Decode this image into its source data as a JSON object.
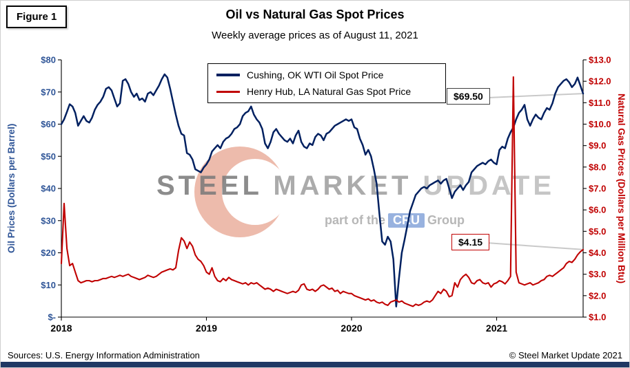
{
  "figure_label": "Figure 1",
  "title": "Oil vs Natural Gas Spot Prices",
  "subtitle": "Weekly average prices as of August 11, 2021",
  "watermark": {
    "word1": "STEEL",
    "word2": "MARKET",
    "word3": "UPDATE",
    "tagline_pre": "part of the",
    "tagline_brand": "CRU",
    "tagline_post": "Group"
  },
  "annotations": {
    "oil": {
      "text": "$69.50"
    },
    "gas": {
      "text": "$4.15"
    }
  },
  "footer": {
    "sources": "Sources: U.S. Energy Information Administration",
    "copyright": "© Steel Market Update 2021"
  },
  "colors": {
    "oil_line": "#002060",
    "gas_line": "#C00000",
    "left_axis": "#2F5597",
    "right_axis": "#C00000",
    "bottom_bar": "#1F3864",
    "callout_leader": "#C9C9C9"
  },
  "chart_data": {
    "type": "line",
    "grid": false,
    "legend_position": "top-center-inside",
    "x_unit": "week",
    "x_ticks": [
      {
        "index": 0,
        "label": "2018"
      },
      {
        "index": 52,
        "label": "2019"
      },
      {
        "index": 104,
        "label": "2020"
      },
      {
        "index": 156,
        "label": "2021"
      }
    ],
    "left_axis": {
      "title": "Oil Prices (Dollars per Barrel)",
      "min": 0,
      "max": 80,
      "ticks": [
        {
          "value": 80,
          "label": "$80"
        },
        {
          "value": 70,
          "label": "$70"
        },
        {
          "value": 60,
          "label": "$60"
        },
        {
          "value": 50,
          "label": "$50"
        },
        {
          "value": 40,
          "label": "$40"
        },
        {
          "value": 30,
          "label": "$30"
        },
        {
          "value": 20,
          "label": "$20"
        },
        {
          "value": 10,
          "label": "$10"
        },
        {
          "value": 0,
          "label": "$-"
        }
      ]
    },
    "right_axis": {
      "title": "Natural Gas Prices (Dollars per Million Btu)",
      "min": 1,
      "max": 13,
      "ticks": [
        {
          "value": 13,
          "label": "$13.0"
        },
        {
          "value": 12,
          "label": "$12.0"
        },
        {
          "value": 11,
          "label": "$11.0"
        },
        {
          "value": 10,
          "label": "$10.0"
        },
        {
          "value": 9,
          "label": "$9.0"
        },
        {
          "value": 8,
          "label": "$8.0"
        },
        {
          "value": 7,
          "label": "$7.0"
        },
        {
          "value": 6,
          "label": "$6.0"
        },
        {
          "value": 5,
          "label": "$5.0"
        },
        {
          "value": 4,
          "label": "$4.0"
        },
        {
          "value": 3,
          "label": "$3.0"
        },
        {
          "value": 2,
          "label": "$2.0"
        },
        {
          "value": 1,
          "label": "$1.0"
        }
      ]
    },
    "series": [
      {
        "name": "Cushing, OK WTI Oil Spot Price",
        "axis": "left",
        "color": "#002060",
        "end_value": 69.5,
        "values": [
          60.0,
          61.5,
          63.8,
          66.2,
          65.5,
          63.5,
          59.5,
          61.0,
          62.5,
          61.0,
          60.5,
          62.0,
          64.5,
          66.0,
          67.0,
          68.5,
          71.0,
          71.5,
          70.5,
          68.0,
          65.5,
          66.5,
          73.5,
          74.0,
          72.5,
          70.0,
          68.5,
          69.5,
          67.5,
          68.0,
          67.0,
          69.5,
          70.0,
          69.0,
          70.5,
          72.0,
          74.0,
          75.5,
          74.5,
          71.0,
          67.0,
          63.0,
          59.5,
          57.0,
          56.5,
          51.0,
          50.5,
          49.0,
          46.0,
          45.5,
          45.0,
          46.5,
          47.5,
          49.0,
          51.5,
          52.5,
          53.5,
          52.5,
          54.5,
          55.5,
          56.0,
          57.0,
          58.5,
          59.0,
          60.0,
          62.5,
          63.5,
          64.0,
          65.5,
          63.0,
          61.5,
          60.5,
          58.5,
          54.0,
          52.5,
          54.5,
          57.5,
          58.5,
          57.0,
          56.0,
          55.0,
          54.5,
          55.5,
          54.0,
          56.5,
          58.0,
          54.5,
          53.0,
          52.5,
          54.0,
          53.5,
          56.0,
          57.0,
          56.5,
          55.0,
          57.0,
          57.5,
          58.5,
          59.5,
          60.0,
          60.5,
          61.0,
          61.5,
          61.0,
          61.5,
          59.0,
          58.5,
          55.5,
          53.5,
          50.5,
          52.0,
          50.0,
          46.0,
          41.5,
          32.0,
          23.5,
          22.5,
          25.0,
          23.5,
          18.0,
          3.3,
          12.0,
          20.0,
          24.0,
          28.5,
          33.0,
          35.5,
          38.0,
          39.0,
          40.0,
          40.5,
          40.0,
          41.0,
          41.5,
          42.0,
          42.5,
          41.5,
          42.5,
          43.0,
          40.0,
          37.0,
          39.0,
          40.0,
          41.0,
          39.5,
          41.0,
          42.0,
          45.0,
          46.0,
          47.0,
          47.5,
          48.0,
          47.5,
          48.5,
          49.0,
          48.0,
          47.5,
          52.0,
          53.0,
          52.5,
          55.5,
          57.5,
          59.0,
          61.5,
          63.5,
          64.5,
          66.0,
          61.5,
          59.5,
          61.5,
          63.0,
          62.0,
          61.5,
          63.5,
          65.0,
          64.5,
          66.5,
          69.5,
          71.5,
          72.5,
          73.5,
          74.0,
          73.0,
          71.5,
          72.5,
          74.5,
          72.0,
          69.5
        ]
      },
      {
        "name": "Henry Hub, LA Natural Gas Spot Price",
        "axis": "right",
        "color": "#C00000",
        "end_value": 4.15,
        "values": [
          3.5,
          6.3,
          4.2,
          3.4,
          3.5,
          3.1,
          2.7,
          2.6,
          2.65,
          2.7,
          2.7,
          2.65,
          2.7,
          2.7,
          2.75,
          2.8,
          2.8,
          2.85,
          2.9,
          2.85,
          2.9,
          2.95,
          2.9,
          2.95,
          3.0,
          2.9,
          2.85,
          2.8,
          2.75,
          2.8,
          2.85,
          2.95,
          2.9,
          2.85,
          2.9,
          3.0,
          3.1,
          3.15,
          3.2,
          3.25,
          3.2,
          3.3,
          4.1,
          4.7,
          4.55,
          4.2,
          4.5,
          4.3,
          3.9,
          3.7,
          3.6,
          3.4,
          3.1,
          3.0,
          3.3,
          2.9,
          2.7,
          2.65,
          2.8,
          2.7,
          2.85,
          2.75,
          2.7,
          2.65,
          2.6,
          2.55,
          2.6,
          2.5,
          2.6,
          2.55,
          2.6,
          2.5,
          2.4,
          2.3,
          2.35,
          2.3,
          2.2,
          2.3,
          2.25,
          2.2,
          2.15,
          2.1,
          2.15,
          2.2,
          2.15,
          2.25,
          2.5,
          2.55,
          2.3,
          2.25,
          2.3,
          2.2,
          2.3,
          2.45,
          2.5,
          2.4,
          2.3,
          2.35,
          2.2,
          2.25,
          2.1,
          2.2,
          2.15,
          2.1,
          2.1,
          2.0,
          1.95,
          1.9,
          1.85,
          1.8,
          1.85,
          1.75,
          1.8,
          1.7,
          1.65,
          1.7,
          1.6,
          1.55,
          1.7,
          1.75,
          1.8,
          1.7,
          1.75,
          1.65,
          1.6,
          1.55,
          1.5,
          1.6,
          1.55,
          1.6,
          1.7,
          1.75,
          1.7,
          1.8,
          2.0,
          2.2,
          2.1,
          2.3,
          2.2,
          1.95,
          2.0,
          2.6,
          2.4,
          2.75,
          2.9,
          3.0,
          2.85,
          2.6,
          2.55,
          2.7,
          2.75,
          2.6,
          2.55,
          2.6,
          2.4,
          2.55,
          2.6,
          2.7,
          2.65,
          2.55,
          2.7,
          2.9,
          12.2,
          3.1,
          2.6,
          2.55,
          2.5,
          2.55,
          2.6,
          2.5,
          2.55,
          2.6,
          2.7,
          2.75,
          2.9,
          2.95,
          2.9,
          3.0,
          3.1,
          3.2,
          3.3,
          3.5,
          3.6,
          3.55,
          3.7,
          3.9,
          4.05,
          4.15
        ]
      }
    ]
  }
}
